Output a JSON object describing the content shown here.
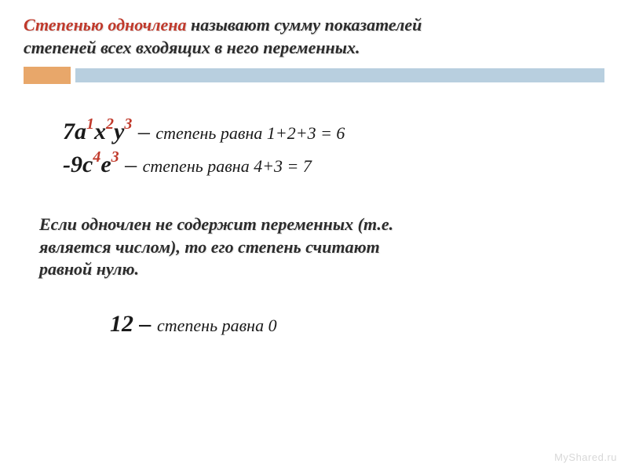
{
  "colors": {
    "accent": "#c0392b",
    "text": "#2c2c2c",
    "orange_block": "#e8a76a",
    "blue_bar": "#b8cfdf",
    "watermark": "#d8d8d8",
    "background": "#ffffff"
  },
  "typography": {
    "title_fontsize": 22,
    "example_fontsize": 30,
    "exponent_fontsize": 20,
    "explain_fontsize": 22,
    "note_fontsize": 22,
    "font_family": "Times New Roman"
  },
  "title": {
    "part1_accent": "Степенью одночлена",
    "part1_rest": " называют сумму показателей ",
    "line2": "степеней всех входящих в него переменных."
  },
  "example1": {
    "coef": "7a",
    "e1": "1",
    "v2": "x",
    "e2": "2",
    "v3": "y",
    "e3": "3",
    "dash": " – ",
    "explain": "степень равна 1+2+3 = 6"
  },
  "example2": {
    "coef": "-9c",
    "e1": "4",
    "v2": "e",
    "e2": "3",
    "dash": " – ",
    "explain": "степень равна 4+3 = 7"
  },
  "note": {
    "line1": "Если одночлен не содержит переменных (т.е. ",
    "line2": "является числом), то его степень считают ",
    "line3": "равной нулю."
  },
  "final": {
    "num": "12",
    "dash": " – ",
    "explain": "степень равна 0"
  },
  "watermark": "MyShared.ru"
}
